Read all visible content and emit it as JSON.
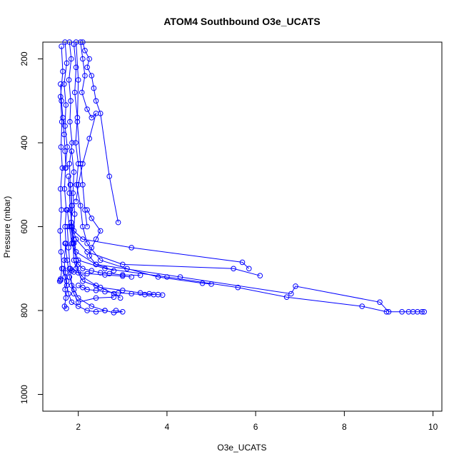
{
  "chart_data": {
    "type": "line",
    "title": "ATOM4 Southbound O3e_UCATS",
    "xlabel": "O3e_UCATS",
    "ylabel": "Pressure (mbar)",
    "xlim": [
      1.2,
      10.2
    ],
    "ylim": [
      1040,
      160
    ],
    "y_reversed": true,
    "x_ticks": [
      2,
      4,
      6,
      8,
      10
    ],
    "x_tick_labels": [
      "2",
      "4",
      "6",
      "8",
      "10"
    ],
    "y_ticks": [
      200,
      400,
      600,
      800,
      1000
    ],
    "y_tick_labels": [
      "200",
      "400",
      "600",
      "800",
      "1000"
    ],
    "grid": false,
    "marker": "open-circle",
    "color": "#0000ff",
    "series": [
      {
        "x": [
          1.7,
          1.74,
          1.68,
          1.72,
          1.7,
          1.75,
          1.71,
          1.69,
          1.73,
          1.7,
          1.72,
          1.68,
          1.71,
          1.74,
          1.7,
          1.72,
          1.69,
          1.73
        ],
        "y": [
          160,
          210,
          260,
          310,
          360,
          410,
          460,
          510,
          560,
          600,
          640,
          680,
          710,
          730,
          750,
          770,
          790,
          795
        ]
      },
      {
        "x": [
          1.8,
          1.84,
          1.79,
          1.83,
          1.81,
          1.86,
          1.8,
          1.82,
          1.85,
          1.83,
          1.88,
          1.9,
          1.95,
          2.1,
          2.4,
          2.8,
          2.95
        ],
        "y": [
          160,
          200,
          250,
          300,
          350,
          400,
          450,
          500,
          550,
          600,
          640,
          680,
          700,
          720,
          740,
          760,
          770
        ]
      },
      {
        "x": [
          1.62,
          1.65,
          1.6,
          1.63,
          1.61,
          1.64,
          1.6,
          1.62,
          1.59,
          1.61,
          1.63,
          1.6,
          1.58,
          1.6
        ],
        "y": [
          170,
          230,
          290,
          350,
          410,
          460,
          510,
          560,
          610,
          660,
          700,
          725,
          730,
          728
        ]
      },
      {
        "x": [
          1.9,
          1.95,
          1.92,
          1.98,
          1.94,
          2.0,
          1.96,
          2.05,
          2.1,
          2.2,
          2.5,
          3.1,
          3.8,
          4.8,
          5.0
        ],
        "y": [
          165,
          220,
          280,
          340,
          400,
          450,
          500,
          550,
          600,
          640,
          680,
          700,
          720,
          735,
          737
        ]
      },
      {
        "x": [
          2.05,
          2.1,
          2.15,
          2.08,
          2.2,
          2.3,
          2.4,
          2.25,
          2.1,
          2.0,
          1.95
        ],
        "y": [
          160,
          200,
          240,
          280,
          320,
          340,
          330,
          390,
          450,
          500,
          540
        ]
      },
      {
        "x": [
          2.1,
          2.15,
          2.25,
          2.2,
          2.3,
          2.35,
          2.4,
          2.5,
          2.7,
          2.9
        ],
        "y": [
          160,
          180,
          200,
          220,
          240,
          270,
          300,
          330,
          480,
          590
        ]
      },
      {
        "x": [
          1.85,
          1.9,
          1.88,
          1.92,
          1.9,
          2.1,
          3.2,
          5.7,
          5.85
        ],
        "y": [
          420,
          470,
          520,
          570,
          610,
          630,
          650,
          685,
          700
        ]
      },
      {
        "x": [
          1.78,
          1.8,
          1.82,
          1.86,
          1.95,
          2.2,
          3.0,
          5.5,
          6.1
        ],
        "y": [
          480,
          520,
          560,
          600,
          630,
          660,
          690,
          700,
          717
        ]
      },
      {
        "x": [
          1.82,
          1.86,
          1.84,
          1.9,
          1.95,
          2.4,
          4.3,
          6.8,
          6.9,
          8.8,
          9.0,
          9.3,
          9.45,
          9.55,
          9.65,
          9.75,
          9.8
        ],
        "y": [
          500,
          550,
          590,
          630,
          660,
          690,
          720,
          760,
          742,
          780,
          803,
          803,
          803,
          803,
          803,
          803,
          803
        ]
      },
      {
        "x": [
          1.75,
          1.8,
          1.85,
          2.0,
          2.6,
          4.0,
          5.6,
          6.7,
          8.4,
          8.95
        ],
        "y": [
          560,
          600,
          640,
          680,
          700,
          720,
          745,
          768,
          790,
          803
        ]
      },
      {
        "x": [
          1.85,
          1.9,
          1.95,
          2.0,
          2.1,
          2.5,
          3.0,
          3.4,
          3.6,
          3.8,
          3.9
        ],
        "y": [
          600,
          640,
          680,
          710,
          730,
          745,
          752,
          758,
          760,
          762,
          763
        ]
      },
      {
        "x": [
          1.7,
          1.75,
          1.8,
          1.9,
          2.0,
          2.3,
          2.6,
          2.8,
          3.0,
          2.85
        ],
        "y": [
          640,
          680,
          720,
          750,
          770,
          790,
          800,
          805,
          803,
          800
        ]
      },
      {
        "x": [
          1.66,
          1.7,
          1.74,
          1.78,
          1.85,
          2.0,
          2.2,
          2.4,
          2.6
        ],
        "y": [
          700,
          720,
          740,
          760,
          780,
          790,
          800,
          803,
          800
        ]
      },
      {
        "x": [
          1.95,
          2.0,
          2.1,
          2.3,
          2.5,
          2.7,
          3.0,
          3.4
        ],
        "y": [
          680,
          690,
          700,
          705,
          710,
          712,
          715,
          716
        ]
      },
      {
        "x": [
          1.8,
          1.85,
          1.9,
          2.2,
          2.6,
          3.0,
          3.2
        ],
        "y": [
          700,
          705,
          708,
          712,
          715,
          718,
          720
        ]
      },
      {
        "x": [
          2.0,
          2.1,
          2.2,
          2.4,
          2.6,
          2.9,
          3.2,
          3.5,
          3.7
        ],
        "y": [
          740,
          745,
          750,
          752,
          755,
          758,
          760,
          762,
          762
        ]
      },
      {
        "x": [
          1.75,
          1.78,
          1.82,
          1.85,
          1.9,
          2.0,
          2.4,
          2.8
        ],
        "y": [
          600,
          650,
          700,
          740,
          760,
          780,
          770,
          768
        ]
      },
      {
        "x": [
          1.6,
          1.62,
          1.65,
          1.68,
          1.7,
          1.72
        ],
        "y": [
          260,
          300,
          340,
          380,
          420,
          460
        ]
      },
      {
        "x": [
          1.95,
          2.0,
          1.98,
          2.05,
          2.1,
          2.15,
          2.2
        ],
        "y": [
          160,
          250,
          350,
          450,
          500,
          560,
          600
        ]
      },
      {
        "x": [
          2.2,
          2.3,
          2.5,
          2.4,
          2.3,
          2.25,
          2.4,
          2.8
        ],
        "y": [
          560,
          580,
          610,
          630,
          650,
          670,
          690,
          705
        ]
      }
    ]
  }
}
